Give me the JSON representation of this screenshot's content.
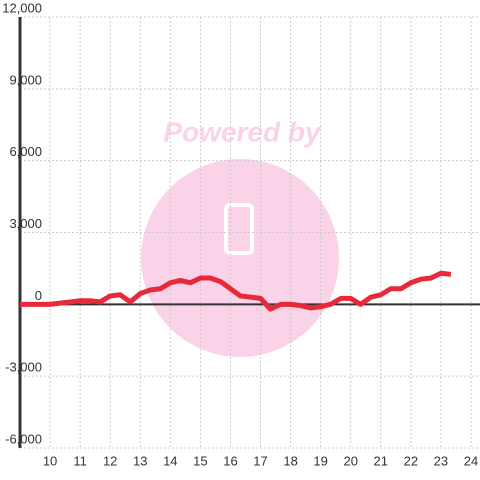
{
  "chart_data": {
    "type": "line",
    "watermark": "Powered by",
    "x": [
      9.0,
      9.33,
      9.67,
      10.0,
      10.33,
      10.67,
      11.0,
      11.33,
      11.67,
      12.0,
      12.33,
      12.67,
      13.0,
      13.33,
      13.67,
      14.0,
      14.33,
      14.67,
      15.0,
      15.33,
      15.67,
      16.0,
      16.33,
      16.67,
      17.0,
      17.33,
      17.67,
      18.0,
      18.33,
      18.67,
      19.0,
      19.33,
      19.67,
      20.0,
      20.33,
      20.67,
      21.0,
      21.33,
      21.67,
      22.0,
      22.33,
      22.67,
      23.0,
      23.33
    ],
    "values": [
      0,
      0,
      0,
      0,
      50,
      100,
      150,
      150,
      100,
      350,
      400,
      100,
      450,
      600,
      650,
      900,
      1000,
      900,
      1100,
      1100,
      950,
      650,
      350,
      300,
      250,
      -200,
      0,
      0,
      -50,
      -150,
      -100,
      0,
      250,
      250,
      0,
      300,
      400,
      650,
      650,
      900,
      1050,
      1100,
      1300,
      1250
    ],
    "color": "#e8293a",
    "xlim": [
      9,
      24.3
    ],
    "xticks": [
      10,
      11,
      12,
      13,
      14,
      15,
      16,
      17,
      18,
      19,
      20,
      21,
      22,
      23,
      24
    ],
    "ylim": [
      -6000,
      12000
    ],
    "yticks": [
      {
        "value": -6000,
        "label": "-6,000"
      },
      {
        "value": -3000,
        "label": "-3,000"
      },
      0,
      {
        "value": 3000,
        "label": "3,000"
      },
      {
        "value": 6000,
        "label": "6,000"
      },
      {
        "value": 9000,
        "label": "9,000"
      },
      {
        "value": 12000,
        "label": "12,000"
      }
    ],
    "grid": true
  }
}
